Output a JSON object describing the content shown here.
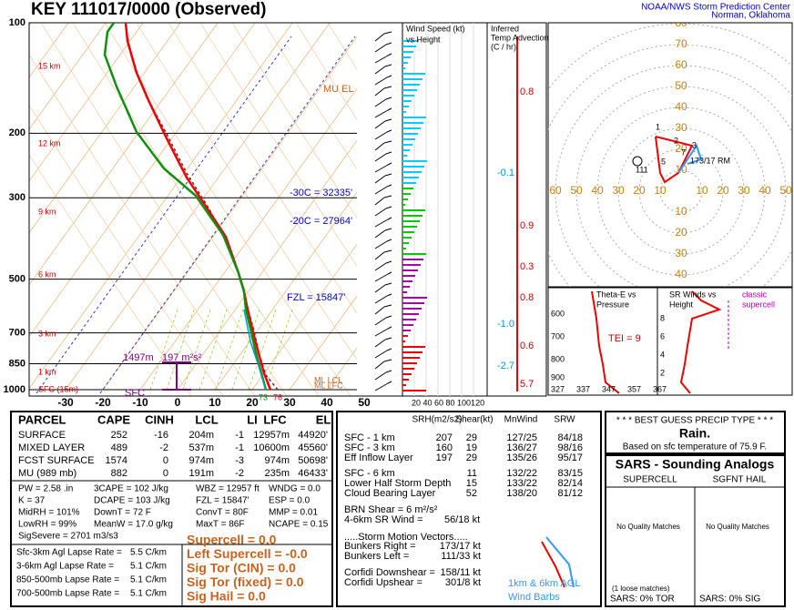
{
  "header": {
    "title": "KEY   111017/0000  (Observed)",
    "org": "NOAA/NWS Storm Prediction Center",
    "place": "Norman, Oklahoma"
  },
  "skewt": {
    "pressure_labels": [
      "100",
      "200",
      "300",
      "500",
      "700",
      "850",
      "1000"
    ],
    "height_labels": [
      "15 km",
      "12 km",
      "9 km",
      "6 km",
      "3 km",
      "1 km",
      "SFC (15m)"
    ],
    "temp_labels": [
      "-30",
      "-20",
      "-10",
      "0",
      "10",
      "20",
      "30",
      "40",
      "50"
    ],
    "mu_el": "MU EL",
    "m30": "-30C = 32335'",
    "m20": "-20C = 27964'",
    "fzl": "FZL = 15847'",
    "eff_depth": "1497m",
    "eff_srh": "197 m²s²",
    "sfc": "SFC",
    "td_sfc": "73",
    "t_sfc": "76",
    "ml_lcl": "ML LCL",
    "ml_lfc": "ML LFC"
  },
  "wind_panel": {
    "title": "Wind Speed (kt)",
    "subtitle": "vs Height",
    "ticks": "20 40 60 80 100120"
  },
  "advection": {
    "title1": "Inferred",
    "title2": "Temp Advection",
    "title3": "(C / hr)",
    "values": [
      "0.8",
      "-0.1",
      "0.9",
      "0.3",
      "0.8",
      "-1.0",
      "0.6",
      "-2.7",
      "5.7"
    ]
  },
  "hodograph": {
    "rings": [
      "10",
      "20",
      "30",
      "40",
      "50",
      "60",
      "70",
      "80"
    ],
    "rm": "173/17 RM",
    "lm": "111",
    "pts": [
      "1",
      "2",
      "3",
      "5",
      "7"
    ]
  },
  "thetae": {
    "title1": "Theta-E vs",
    "title2": "Pressure",
    "tei": "TEI = 9",
    "p": [
      "600",
      "700",
      "800",
      "900"
    ],
    "x": [
      "327",
      "337",
      "347",
      "357",
      "367"
    ]
  },
  "srwind": {
    "title1": "SR Winds vs",
    "title2": "Height",
    "label1": "classic",
    "label2": "supercell",
    "h": [
      "8",
      "6",
      "4",
      "2"
    ]
  },
  "parcel": {
    "headers": [
      "PARCEL",
      "CAPE",
      "CINH",
      "LCL",
      "LI",
      "LFC",
      "EL"
    ],
    "rows": [
      [
        "SURFACE",
        "252",
        "-16",
        "204m",
        "-1",
        "12957m",
        "44920'"
      ],
      [
        "MIXED LAYER",
        "489",
        "-2",
        "537m",
        "-1",
        "10600m",
        "45560'"
      ],
      [
        "FCST SURFACE",
        "1574",
        "0",
        "974m",
        "-3",
        "974m",
        "50698'"
      ],
      [
        "MU   (989 mb)",
        "882",
        "0",
        "191m",
        "-2",
        "235m",
        "46433'"
      ]
    ]
  },
  "indices": [
    [
      "PW = 2.58 .in",
      "K = 37",
      "MidRH = 101%",
      "LowRH = 99%",
      "SigSevere = 2701 m3/s3"
    ],
    [
      "3CAPE = 102 J/kg",
      "DCAPE = 103 J/kg",
      "DownT = 72 F",
      "MeanW = 17.0 g/kg"
    ],
    [
      "WBZ = 12957 ft",
      "FZL = 15847'",
      "ConvT = 80F",
      "MaxT = 86F"
    ],
    [
      "WNDG = 0.0",
      "ESP = 0.0",
      "MMP = 0.01",
      "NCAPE = 0.15"
    ]
  ],
  "lapse": [
    [
      "Sfc-3km Agl Lapse Rate =",
      "5.5 C/km"
    ],
    [
      "3-6km Agl Lapse Rate =",
      "5.1 C/km"
    ],
    [
      "850-500mb Lapse Rate =",
      "5.1 C/km"
    ],
    [
      "700-500mb Lapse Rate =",
      "5.1 C/km"
    ]
  ],
  "params": [
    "Supercell = 0.0",
    "Left Supercell = -0.0",
    "Sig Tor (CIN) = 0.0",
    "Sig Tor (fixed) = 0.0",
    "Sig Hail = 0.0"
  ],
  "kinematics": {
    "headers": [
      "SRH(m2/s2)",
      "Shear(kt)",
      "MnWind",
      "SRW"
    ],
    "rows1": [
      [
        "SFC - 1 km",
        "207",
        "29",
        "127/25",
        "84/18"
      ],
      [
        "SFC - 3 km",
        "160",
        "19",
        "136/27",
        "98/16"
      ],
      [
        "Eff Inflow Layer",
        "197",
        "29",
        "135/26",
        "95/17"
      ]
    ],
    "rows2": [
      [
        "SFC - 6 km",
        "11",
        "132/22",
        "83/15"
      ],
      [
        "Lower Half Storm Depth",
        "15",
        "133/22",
        "82/14"
      ],
      [
        "Cloud Bearing Layer",
        "52",
        "138/20",
        "81/12"
      ]
    ],
    "brn": "BRN Shear =  6 m²/s²",
    "sr46": "4-6km SR Wind =",
    "sr46v": "56/18 kt",
    "smv": ".....Storm Motion Vectors.....",
    "motions": [
      [
        "Bunkers Right =",
        "173/17 kt"
      ],
      [
        "Bunkers Left =",
        "111/33 kt"
      ],
      [
        "Corfidi Downshear =",
        "158/11 kt"
      ],
      [
        "Corfidi Upshear =",
        "301/8 kt"
      ]
    ],
    "barbs1": "1km & 6km AGL",
    "barbs2": "Wind Barbs"
  },
  "precip": {
    "title": "* * * BEST GUESS PRECIP TYPE * * *",
    "type": "Rain.",
    "note": "Based on sfc temperature of 75.9 F."
  },
  "sars": {
    "title": "SARS - Sounding Analogs",
    "col1": "SUPERCELL",
    "col2": "SGFNT HAIL",
    "nm1": "No Quality Matches",
    "nm2": "No Quality Matches",
    "loose": "(1 loose matches)",
    "tor": "SARS:  0% TOR",
    "sig": "SARS:  0% SIG"
  }
}
